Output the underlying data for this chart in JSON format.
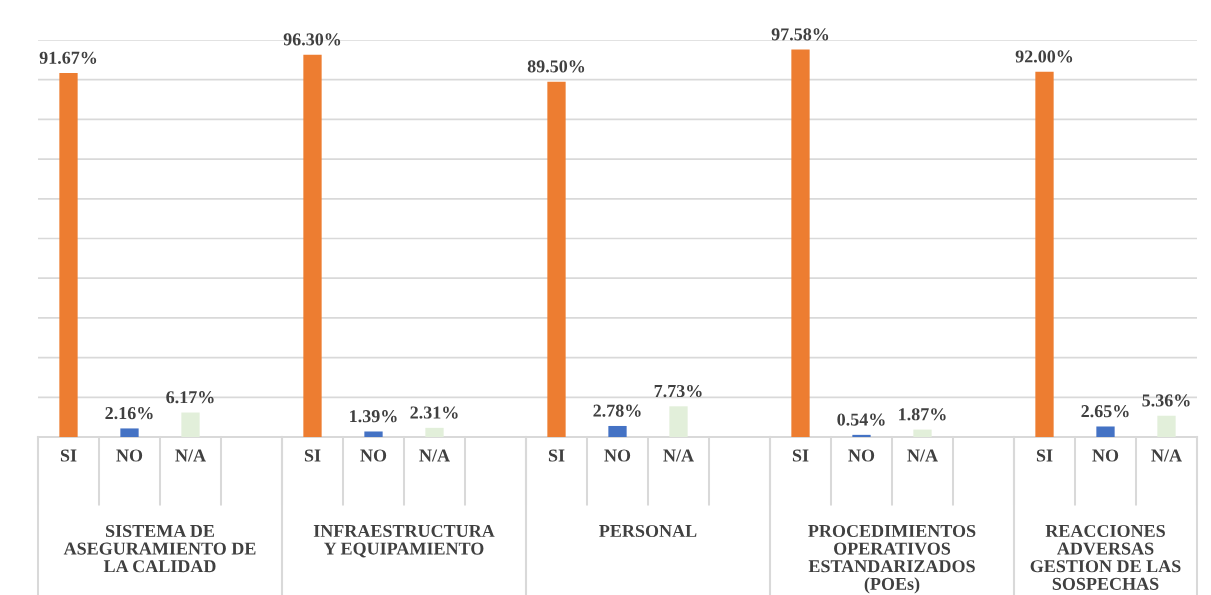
{
  "chart_data": {
    "type": "bar",
    "categories": [
      "SI",
      "NO",
      "N/A",
      null,
      "SI",
      "NO",
      "N/A",
      null,
      "SI",
      "NO",
      "N/A",
      null,
      "SI",
      "NO",
      "N/A",
      null,
      "SI",
      "NO",
      "N/A"
    ],
    "values": [
      91.67,
      2.16,
      6.17,
      null,
      96.3,
      1.39,
      2.31,
      null,
      89.5,
      2.78,
      7.73,
      null,
      97.58,
      0.54,
      1.87,
      null,
      92.0,
      2.65,
      5.36
    ],
    "colors": [
      "#ed7d31",
      "#4472c4",
      "#e2efda",
      null,
      "#ed7d31",
      "#4472c4",
      "#e2efda",
      null,
      "#ed7d31",
      "#4472c4",
      "#e2efda",
      null,
      "#ed7d31",
      "#4472c4",
      "#e2efda",
      null,
      "#ed7d31",
      "#4472c4",
      "#e2efda"
    ],
    "value_labels": [
      "91.67%",
      "2.16%",
      "6.17%",
      null,
      "96.30%",
      "1.39%",
      "2.31%",
      null,
      "89.50%",
      "2.78%",
      "7.73%",
      null,
      "97.58%",
      "0.54%",
      "1.87%",
      null,
      "92.00%",
      "2.65%",
      "5.36%"
    ],
    "annotations": [
      "SISTEMA DE\nASEGURAMIENTO DE\nLA CALIDAD",
      "INFRAESTRUCTURA\nY EQUIPAMIENTO",
      "PERSONAL",
      "PROCEDIMIENTOS\nOPERATIVOS\nESTANDARIZADOS\n(POEs)",
      "REACCIONES\nADVERSAS\nGESTION DE LAS\nSOSPECHAS"
    ],
    "ylim": [
      0,
      100
    ],
    "yticks": [
      {
        "value": 0,
        "label": null
      },
      {
        "value": 10,
        "label": null
      },
      {
        "value": 20,
        "label": null
      },
      {
        "value": 30,
        "label": null
      },
      {
        "value": 40,
        "label": null
      },
      {
        "value": 50,
        "label": null
      },
      {
        "value": 60,
        "label": null
      },
      {
        "value": 70,
        "label": null
      },
      {
        "value": 80,
        "label": null
      },
      {
        "value": 90,
        "label": null
      },
      {
        "value": 100,
        "label": null
      }
    ],
    "grid": "y",
    "tick_labels": "x"
  }
}
